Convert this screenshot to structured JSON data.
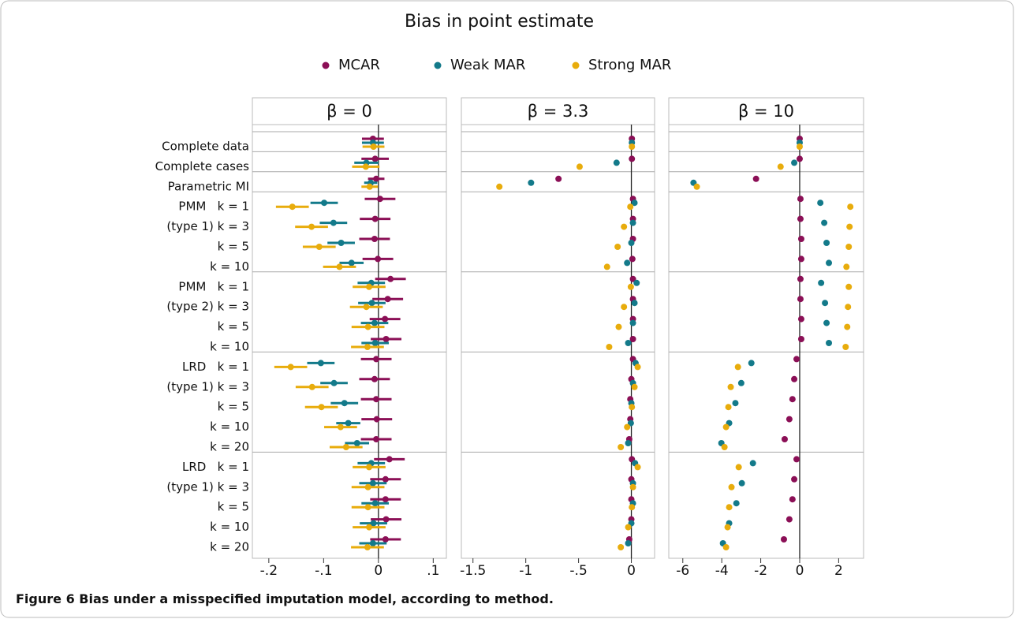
{
  "title": "Bias in point estimate",
  "caption_label": "Figure 6",
  "caption": "Bias under a misspecified imputation model, according to method.",
  "chart_data": [
    {
      "type": "dot",
      "title": "β = 0",
      "categories": [
        "Complete data",
        "Complete cases",
        "Parametric MI",
        "PMM   k = 1",
        "(type 1) k = 3",
        "k = 5",
        "k = 10",
        "PMM   k = 1",
        "(type 2) k = 3",
        "k = 5",
        "k = 10",
        "LRD   k = 1",
        "(type 1) k = 3",
        "k = 5",
        "k = 10",
        "k = 20",
        "LRD   k = 1",
        "(type 1) k = 3",
        "k = 5",
        "k = 10",
        "k = 20"
      ],
      "xlim": [
        -0.23,
        0.124
      ],
      "xticks": [
        {
          "value": -0.2,
          "label": "-.2"
        },
        {
          "value": -0.1,
          "label": "-.1"
        },
        0,
        {
          "value": 0.1,
          "label": ".1"
        }
      ],
      "series": [
        {
          "name": "MCAR",
          "color": "#8b0f56",
          "values": [
            -0.01,
            -0.006,
            -0.004,
            0.003,
            -0.006,
            -0.007,
            -0.001,
            0.022,
            0.017,
            0.012,
            0.014,
            -0.004,
            -0.007,
            -0.004,
            -0.003,
            -0.004,
            0.02,
            0.013,
            0.013,
            0.014,
            0.013
          ],
          "errors": [
            0.02,
            0.025,
            0.015,
            0.028,
            0.028,
            0.028,
            0.028,
            0.028,
            0.028,
            0.028,
            0.028,
            0.028,
            0.028,
            0.028,
            0.028,
            0.028,
            0.028,
            0.028,
            0.028,
            0.028,
            0.028
          ]
        },
        {
          "name": "Weak MAR",
          "color": "#137a8a",
          "values": [
            -0.01,
            -0.022,
            -0.014,
            -0.099,
            -0.082,
            -0.068,
            -0.049,
            -0.013,
            -0.012,
            -0.007,
            -0.006,
            -0.105,
            -0.081,
            -0.062,
            -0.055,
            -0.039,
            -0.013,
            -0.01,
            -0.006,
            -0.009,
            -0.01
          ],
          "errors": [
            0.02,
            0.022,
            0.012,
            0.025,
            0.025,
            0.025,
            0.022,
            0.025,
            0.025,
            0.025,
            0.025,
            0.025,
            0.025,
            0.025,
            0.022,
            0.022,
            0.025,
            0.025,
            0.025,
            0.025,
            0.025
          ]
        },
        {
          "name": "Strong MAR",
          "color": "#e8ac0c",
          "values": [
            -0.009,
            -0.023,
            -0.016,
            -0.157,
            -0.122,
            -0.108,
            -0.071,
            -0.017,
            -0.022,
            -0.019,
            -0.02,
            -0.16,
            -0.121,
            -0.104,
            -0.069,
            -0.059,
            -0.017,
            -0.019,
            -0.019,
            -0.017,
            -0.02
          ],
          "errors": [
            0.02,
            0.025,
            0.015,
            0.03,
            0.03,
            0.03,
            0.03,
            0.03,
            0.03,
            0.03,
            0.03,
            0.03,
            0.03,
            0.03,
            0.03,
            0.03,
            0.03,
            0.03,
            0.03,
            0.03,
            0.03
          ]
        }
      ]
    },
    {
      "type": "dot",
      "title": "β = 3.3",
      "xlim": [
        -1.61,
        0.22
      ],
      "xticks": [
        -1.5,
        -1,
        {
          "value": -0.5,
          "label": "-.5"
        },
        0
      ],
      "series": [
        {
          "values": [
            0.005,
            0.005,
            -0.69,
            0.015,
            0.015,
            0.015,
            0.01,
            0.015,
            0.015,
            0.015,
            0.015,
            0.015,
            0.0,
            -0.01,
            -0.01,
            -0.02,
            0.005,
            0.0,
            0.0,
            0.0,
            -0.02
          ]
        },
        {
          "values": [
            0.005,
            -0.14,
            -0.95,
            0.03,
            0.015,
            0.0,
            -0.04,
            0.05,
            0.03,
            0.015,
            -0.03,
            0.04,
            0.015,
            0.0,
            -0.005,
            -0.03,
            0.035,
            0.015,
            0.015,
            0.0,
            -0.03
          ]
        },
        {
          "values": [
            0.005,
            -0.49,
            -1.25,
            -0.01,
            -0.07,
            -0.13,
            -0.23,
            -0.005,
            -0.07,
            -0.12,
            -0.21,
            0.06,
            0.03,
            0.005,
            -0.04,
            -0.1,
            0.06,
            0.015,
            0.005,
            -0.03,
            -0.1
          ]
        }
      ]
    },
    {
      "type": "dot",
      "title": "β = 10",
      "xlim": [
        -6.72,
        3.28
      ],
      "xticks": [
        -6,
        -4,
        -2,
        0,
        2
      ],
      "series": [
        {
          "values": [
            0.0,
            0.0,
            -2.24,
            0.04,
            0.04,
            0.08,
            0.08,
            0.04,
            0.04,
            0.08,
            0.08,
            -0.16,
            -0.28,
            -0.37,
            -0.53,
            -0.77,
            -0.16,
            -0.28,
            -0.37,
            -0.53,
            -0.81
          ]
        },
        {
          "values": [
            0.0,
            -0.28,
            -5.45,
            1.06,
            1.26,
            1.38,
            1.5,
            1.1,
            1.3,
            1.38,
            1.5,
            -2.48,
            -3.0,
            -3.3,
            -3.62,
            -4.02,
            -2.4,
            -2.97,
            -3.25,
            -3.62,
            -3.94
          ]
        },
        {
          "values": [
            0.0,
            -0.98,
            -5.28,
            2.6,
            2.56,
            2.52,
            2.4,
            2.52,
            2.48,
            2.44,
            2.36,
            -3.17,
            -3.54,
            -3.66,
            -3.78,
            -3.86,
            -3.13,
            -3.5,
            -3.62,
            -3.7,
            -3.78
          ]
        }
      ]
    }
  ]
}
